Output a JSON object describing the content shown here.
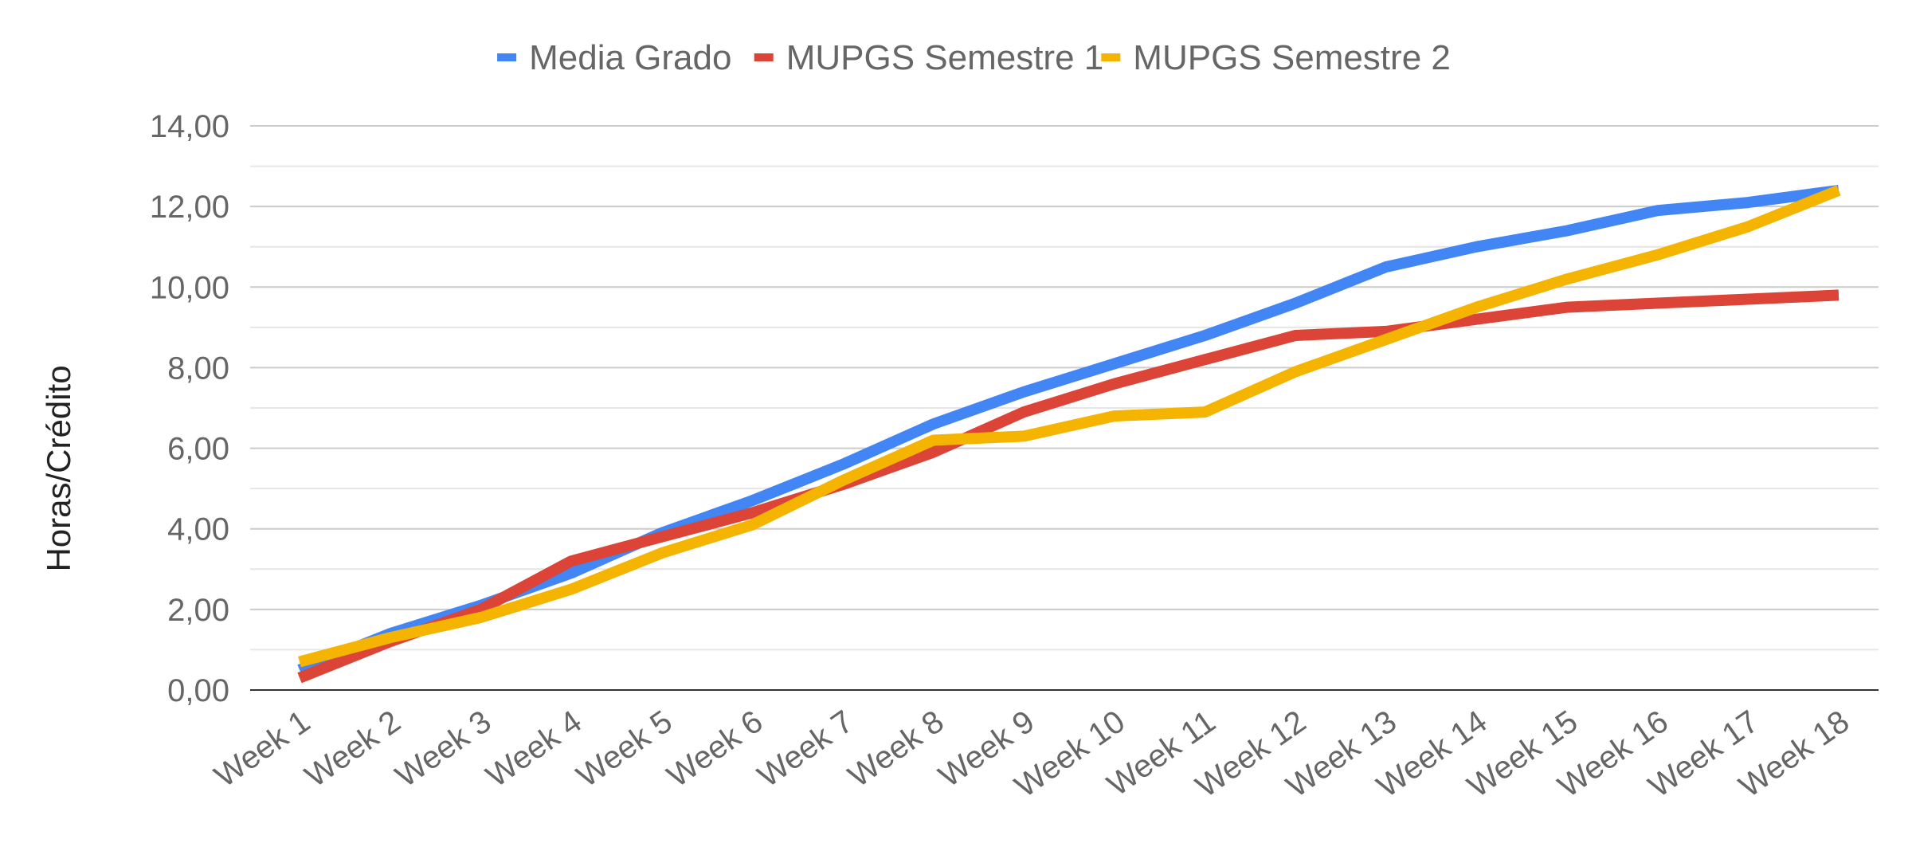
{
  "chart_data": {
    "type": "line",
    "ylabel": "Horas/Crédito",
    "ylim": [
      0,
      14
    ],
    "y_ticks": [
      "0,00",
      "2,00",
      "4,00",
      "6,00",
      "8,00",
      "10,00",
      "12,00",
      "14,00"
    ],
    "grid": true,
    "legend_position": "top",
    "categories": [
      "Week 1",
      "Week 2",
      "Week 3",
      "Week 4",
      "Week 5",
      "Week 6",
      "Week 7",
      "Week 8",
      "Week 9",
      "Week 10",
      "Week 11",
      "Week 12",
      "Week 13",
      "Week 14",
      "Week 15",
      "Week 16",
      "Week 17",
      "Week 18"
    ],
    "series": [
      {
        "name": "Media Grado",
        "color": "#4285F4",
        "values": [
          0.5,
          1.4,
          2.1,
          2.9,
          3.9,
          4.7,
          5.6,
          6.6,
          7.4,
          8.1,
          8.8,
          9.6,
          10.5,
          11.0,
          11.4,
          11.9,
          12.1,
          12.4
        ]
      },
      {
        "name": "MUPGS Semestre 1",
        "color": "#DB4437",
        "values": [
          0.3,
          1.2,
          2.0,
          3.2,
          3.8,
          4.4,
          5.1,
          5.9,
          6.9,
          7.6,
          8.2,
          8.8,
          8.9,
          9.2,
          9.5,
          9.6,
          9.7,
          9.8
        ]
      },
      {
        "name": "MUPGS Semestre 2",
        "color": "#F4B400",
        "values": [
          0.7,
          1.3,
          1.8,
          2.5,
          3.4,
          4.1,
          5.2,
          6.2,
          6.3,
          6.8,
          6.9,
          7.9,
          8.7,
          9.5,
          10.2,
          10.8,
          11.5,
          12.4
        ]
      }
    ]
  }
}
